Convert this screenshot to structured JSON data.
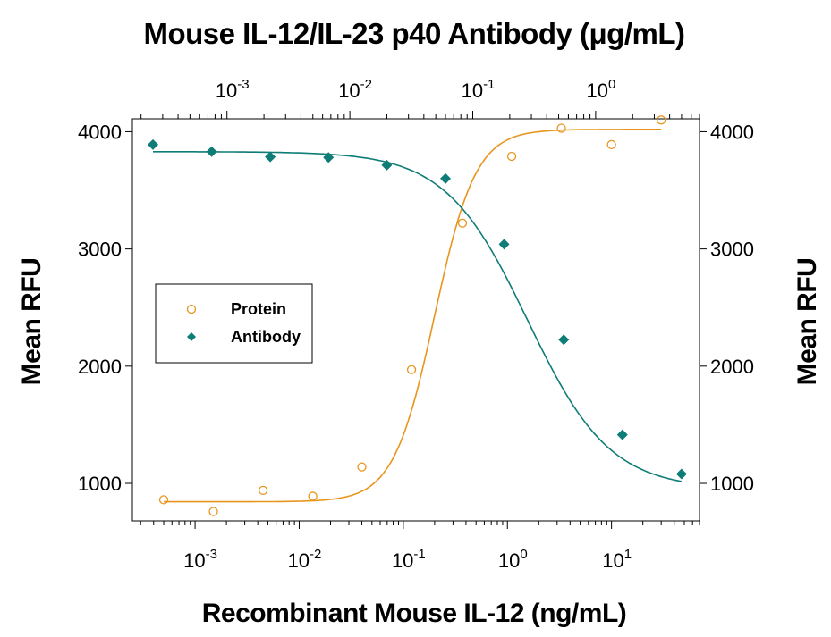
{
  "chart_data": {
    "type": "scatter",
    "title": "Mouse IL-12/IL-23 p40 Antibody (μg/mL)",
    "xlabel": "Recombinant Mouse IL-12 (ng/mL)",
    "ylabel": "Mean RFU",
    "y2label": "Mean RFU",
    "x_scale": "log",
    "x_range": [
      0.00025,
      70
    ],
    "x2_range": [
      0.00017,
      7
    ],
    "ylim": [
      680,
      4110
    ],
    "y_ticks": [
      1000,
      2000,
      3000,
      4000
    ],
    "y_tick_labels": [
      "1000",
      "2000",
      "3000",
      "4000"
    ],
    "x_ticks": [
      0.001,
      0.01,
      0.1,
      1,
      10
    ],
    "x_tick_base": [
      "10",
      "10",
      "10",
      "10",
      "10"
    ],
    "x_tick_exp": [
      "-3",
      "-2",
      "-1",
      "0",
      "1"
    ],
    "x2_ticks": [
      0.001,
      0.01,
      0.1,
      1
    ],
    "x2_tick_base": [
      "10",
      "10",
      "10",
      "10"
    ],
    "x2_tick_exp": [
      "-3",
      "-2",
      "-1",
      "0"
    ],
    "grid": false,
    "legend_position": "middle-left",
    "series": [
      {
        "name": "Protein",
        "axis": "bottom",
        "marker": "open-circle",
        "color": "#E8951E",
        "x": [
          0.0005,
          0.0015,
          0.0045,
          0.0135,
          0.04,
          0.12,
          0.37,
          1.1,
          3.3,
          10,
          30
        ],
        "y": [
          860,
          760,
          940,
          890,
          1140,
          1970,
          3220,
          3790,
          4030,
          3890,
          4100
        ],
        "fit": {
          "bottom": 843,
          "top": 4020,
          "ec50": 0.2,
          "hill": 2.2
        }
      },
      {
        "name": "Antibody",
        "axis": "top",
        "marker": "filled-diamond",
        "color": "#0E7C77",
        "x": [
          0.00025,
          0.00075,
          0.00225,
          0.0067,
          0.02,
          0.06,
          0.18,
          0.55,
          1.65,
          5
        ],
        "y": [
          3890,
          3830,
          3785,
          3780,
          3715,
          3600,
          3040,
          2225,
          1415,
          1080
        ],
        "fit": {
          "bottom": 950,
          "top": 3830,
          "ic50": 0.28,
          "hill": 1.3
        }
      }
    ]
  }
}
